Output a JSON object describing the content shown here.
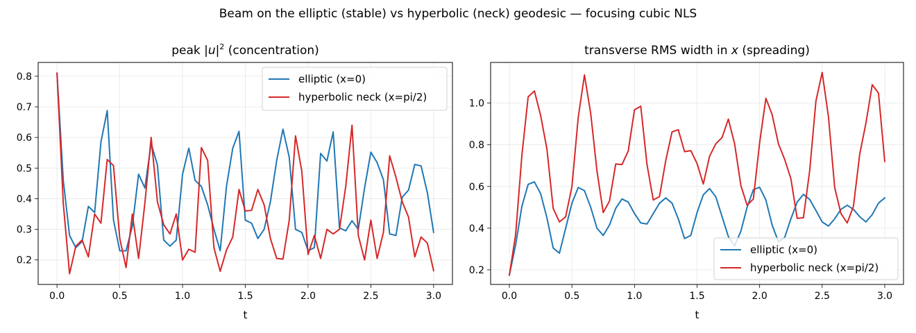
{
  "figure": {
    "suptitle": "Beam on the elliptic (stable) vs hyperbolic (neck) geodesic — focusing cubic NLS"
  },
  "colors": {
    "elliptic": "#1f77b4",
    "hyperbolic": "#d62728"
  },
  "chart_data": [
    {
      "type": "line",
      "title_parts": [
        "peak |",
        "u",
        "|",
        "2",
        "  (concentration)"
      ],
      "xlabel": "t",
      "ylabel": "",
      "xlim": [
        -0.15,
        3.15
      ],
      "ylim": [
        0.12,
        0.845
      ],
      "xticks": [
        0.0,
        0.5,
        1.0,
        1.5,
        2.0,
        2.5,
        3.0
      ],
      "xtick_labels": [
        "0.0",
        "0.5",
        "1.0",
        "1.5",
        "2.0",
        "2.5",
        "3.0"
      ],
      "yticks": [
        0.2,
        0.3,
        0.4,
        0.5,
        0.6,
        0.7,
        0.8
      ],
      "ytick_labels": [
        "0.2",
        "0.3",
        "0.4",
        "0.5",
        "0.6",
        "0.7",
        "0.8"
      ],
      "grid": true,
      "legend": "upper right",
      "series": [
        {
          "name": "elliptic (x=0)",
          "color_key": "elliptic",
          "x": [
            0.0,
            0.05,
            0.1,
            0.15,
            0.2,
            0.25,
            0.3,
            0.35,
            0.4,
            0.45,
            0.5,
            0.55,
            0.6,
            0.65,
            0.7,
            0.75,
            0.8,
            0.85,
            0.9,
            0.95,
            1.0,
            1.05,
            1.1,
            1.15,
            1.2,
            1.25,
            1.3,
            1.35,
            1.4,
            1.45,
            1.5,
            1.55,
            1.6,
            1.65,
            1.7,
            1.75,
            1.8,
            1.85,
            1.9,
            1.95,
            2.0,
            2.05,
            2.1,
            2.15,
            2.2,
            2.25,
            2.3,
            2.35,
            2.4,
            2.45,
            2.5,
            2.55,
            2.6,
            2.65,
            2.7,
            2.75,
            2.8,
            2.85,
            2.9,
            2.95,
            3.0
          ],
          "y": [
            0.81,
            0.46,
            0.28,
            0.24,
            0.26,
            0.375,
            0.355,
            0.585,
            0.688,
            0.33,
            0.23,
            0.23,
            0.31,
            0.48,
            0.435,
            0.58,
            0.51,
            0.265,
            0.245,
            0.265,
            0.48,
            0.565,
            0.46,
            0.44,
            0.38,
            0.3,
            0.23,
            0.44,
            0.565,
            0.62,
            0.33,
            0.32,
            0.27,
            0.3,
            0.39,
            0.525,
            0.627,
            0.535,
            0.3,
            0.29,
            0.23,
            0.24,
            0.548,
            0.523,
            0.618,
            0.305,
            0.295,
            0.328,
            0.3,
            0.435,
            0.552,
            0.518,
            0.462,
            0.285,
            0.28,
            0.405,
            0.428,
            0.512,
            0.507,
            0.42,
            0.29
          ]
        },
        {
          "name": "hyperbolic neck (x=pi/2)",
          "color_key": "hyperbolic",
          "x": [
            0.0,
            0.05,
            0.1,
            0.15,
            0.2,
            0.25,
            0.3,
            0.35,
            0.4,
            0.45,
            0.5,
            0.55,
            0.6,
            0.65,
            0.7,
            0.75,
            0.8,
            0.85,
            0.9,
            0.95,
            1.0,
            1.05,
            1.1,
            1.15,
            1.2,
            1.25,
            1.3,
            1.35,
            1.4,
            1.45,
            1.5,
            1.55,
            1.6,
            1.65,
            1.7,
            1.75,
            1.8,
            1.85,
            1.9,
            1.95,
            2.0,
            2.05,
            2.1,
            2.15,
            2.2,
            2.25,
            2.3,
            2.35,
            2.4,
            2.45,
            2.5,
            2.55,
            2.6,
            2.65,
            2.7,
            2.75,
            2.8,
            2.85,
            2.9,
            2.95,
            3.0
          ],
          "y": [
            0.81,
            0.385,
            0.155,
            0.245,
            0.265,
            0.21,
            0.35,
            0.32,
            0.528,
            0.508,
            0.27,
            0.175,
            0.35,
            0.205,
            0.385,
            0.6,
            0.39,
            0.315,
            0.285,
            0.35,
            0.2,
            0.235,
            0.225,
            0.567,
            0.525,
            0.24,
            0.163,
            0.232,
            0.275,
            0.43,
            0.36,
            0.362,
            0.43,
            0.38,
            0.27,
            0.205,
            0.203,
            0.33,
            0.605,
            0.49,
            0.218,
            0.28,
            0.205,
            0.3,
            0.285,
            0.3,
            0.44,
            0.64,
            0.28,
            0.2,
            0.33,
            0.205,
            0.29,
            0.54,
            0.47,
            0.39,
            0.34,
            0.21,
            0.275,
            0.255,
            0.165
          ]
        }
      ]
    },
    {
      "type": "line",
      "title_parts": [
        "transverse RMS width in ",
        "x",
        "  (spreading)"
      ],
      "xlabel": "t",
      "ylabel": "",
      "xlim": [
        -0.15,
        3.15
      ],
      "ylim": [
        0.13,
        1.195
      ],
      "xticks": [
        0.0,
        0.5,
        1.0,
        1.5,
        2.0,
        2.5,
        3.0
      ],
      "xtick_labels": [
        "0.0",
        "0.5",
        "1.0",
        "1.5",
        "2.0",
        "2.5",
        "3.0"
      ],
      "yticks": [
        0.2,
        0.4,
        0.6,
        0.8,
        1.0
      ],
      "ytick_labels": [
        "0.2",
        "0.4",
        "0.6",
        "0.8",
        "1.0"
      ],
      "grid": true,
      "legend": "lower right",
      "series": [
        {
          "name": "elliptic (x=0)",
          "color_key": "elliptic",
          "x": [
            0.0,
            0.05,
            0.1,
            0.15,
            0.2,
            0.25,
            0.3,
            0.35,
            0.4,
            0.45,
            0.5,
            0.55,
            0.6,
            0.65,
            0.7,
            0.75,
            0.8,
            0.85,
            0.9,
            0.95,
            1.0,
            1.05,
            1.1,
            1.15,
            1.2,
            1.25,
            1.3,
            1.35,
            1.4,
            1.45,
            1.5,
            1.55,
            1.6,
            1.65,
            1.7,
            1.75,
            1.8,
            1.85,
            1.9,
            1.95,
            2.0,
            2.05,
            2.1,
            2.15,
            2.2,
            2.25,
            2.3,
            2.35,
            2.4,
            2.45,
            2.5,
            2.55,
            2.6,
            2.65,
            2.7,
            2.75,
            2.8,
            2.85,
            2.9,
            2.95,
            3.0
          ],
          "y": [
            0.175,
            0.32,
            0.505,
            0.61,
            0.622,
            0.565,
            0.45,
            0.305,
            0.28,
            0.4,
            0.52,
            0.595,
            0.58,
            0.5,
            0.4,
            0.365,
            0.415,
            0.495,
            0.54,
            0.525,
            0.47,
            0.425,
            0.42,
            0.47,
            0.52,
            0.545,
            0.52,
            0.445,
            0.35,
            0.365,
            0.475,
            0.56,
            0.59,
            0.55,
            0.455,
            0.36,
            0.315,
            0.385,
            0.5,
            0.585,
            0.596,
            0.535,
            0.415,
            0.335,
            0.355,
            0.445,
            0.525,
            0.562,
            0.538,
            0.485,
            0.43,
            0.41,
            0.445,
            0.49,
            0.51,
            0.49,
            0.455,
            0.43,
            0.465,
            0.52,
            0.545
          ]
        },
        {
          "name": "hyperbolic neck (x=pi/2)",
          "color_key": "hyperbolic",
          "x": [
            0.0,
            0.05,
            0.1,
            0.15,
            0.2,
            0.25,
            0.3,
            0.35,
            0.4,
            0.45,
            0.5,
            0.55,
            0.6,
            0.65,
            0.7,
            0.75,
            0.8,
            0.85,
            0.9,
            0.95,
            1.0,
            1.05,
            1.1,
            1.15,
            1.2,
            1.25,
            1.3,
            1.35,
            1.4,
            1.45,
            1.5,
            1.55,
            1.6,
            1.65,
            1.7,
            1.75,
            1.8,
            1.85,
            1.9,
            1.95,
            2.0,
            2.05,
            2.1,
            2.15,
            2.2,
            2.25,
            2.3,
            2.35,
            2.4,
            2.45,
            2.5,
            2.55,
            2.6,
            2.65,
            2.7,
            2.75,
            2.8,
            2.85,
            2.9,
            2.95,
            3.0
          ],
          "y": [
            0.175,
            0.37,
            0.75,
            1.03,
            1.058,
            0.94,
            0.78,
            0.495,
            0.43,
            0.455,
            0.6,
            0.93,
            1.135,
            0.95,
            0.675,
            0.475,
            0.53,
            0.708,
            0.705,
            0.77,
            0.968,
            0.985,
            0.705,
            0.535,
            0.552,
            0.725,
            0.862,
            0.872,
            0.767,
            0.772,
            0.71,
            0.612,
            0.745,
            0.805,
            0.835,
            0.923,
            0.805,
            0.605,
            0.51,
            0.54,
            0.81,
            1.023,
            0.945,
            0.805,
            0.73,
            0.637,
            0.447,
            0.45,
            0.675,
            1.01,
            1.147,
            0.935,
            0.595,
            0.47,
            0.425,
            0.505,
            0.755,
            0.905,
            1.088,
            1.048,
            0.72
          ]
        }
      ]
    }
  ]
}
